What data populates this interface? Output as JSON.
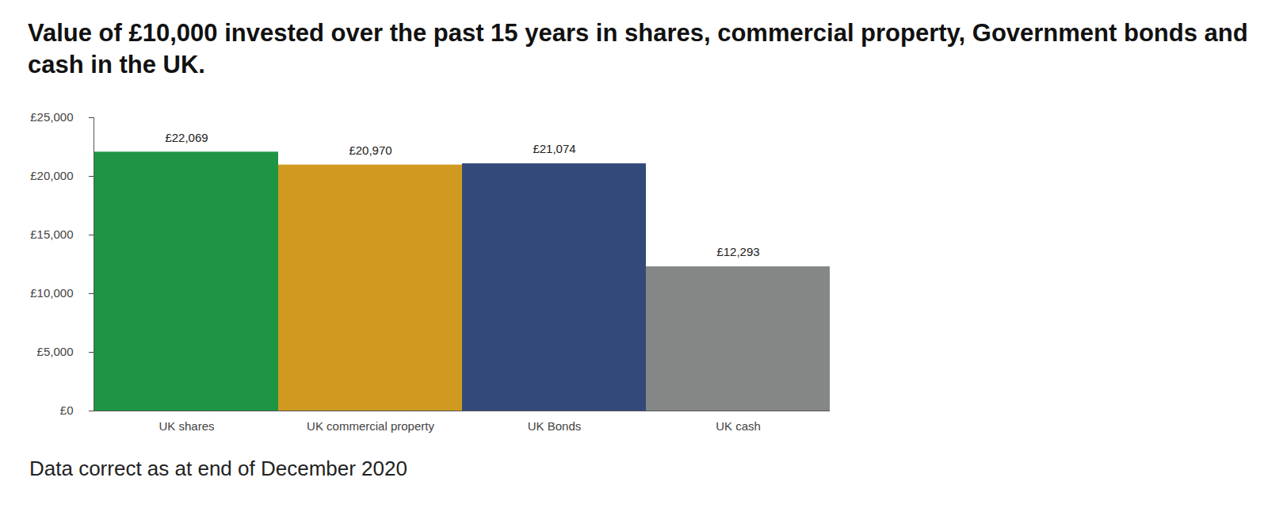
{
  "chart_data": {
    "type": "bar",
    "title": "Value of £10,000 invested over the past 15 years in shares, commercial property, Government bonds and cash in the UK.",
    "caption": "Data correct as at end of December 2020",
    "categories": [
      "UK shares",
      "UK commercial property",
      "UK Bonds",
      "UK cash"
    ],
    "values": [
      22069,
      20970,
      21074,
      12293
    ],
    "value_labels": [
      "£22,069",
      "£20,970",
      "£21,074",
      "£12,293"
    ],
    "colors": [
      "#1e9545",
      "#d09a21",
      "#32497a",
      "#858786"
    ],
    "ylim": [
      0,
      25000
    ],
    "yticks": [
      {
        "value": 0,
        "label": "£0"
      },
      {
        "value": 5000,
        "label": "£5,000"
      },
      {
        "value": 10000,
        "label": "£10,000"
      },
      {
        "value": 15000,
        "label": "£15,000"
      },
      {
        "value": 20000,
        "label": "£20,000"
      },
      {
        "value": 25000,
        "label": "£25,000"
      }
    ],
    "data_labels": true,
    "grid": false
  }
}
